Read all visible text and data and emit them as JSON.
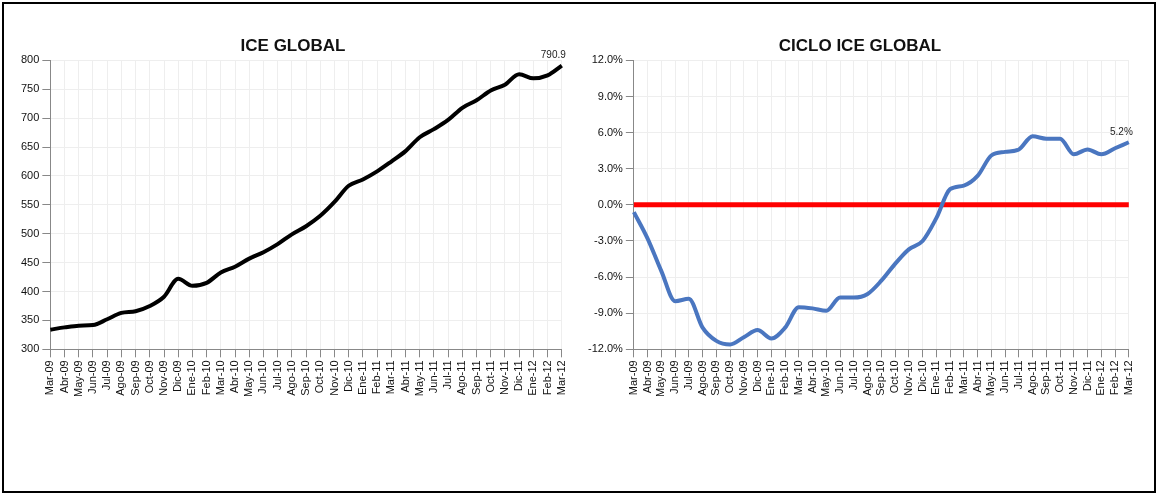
{
  "chart_data": [
    {
      "type": "line",
      "title": "ICE GLOBAL",
      "categories": [
        "Mar-09",
        "Abr-09",
        "May-09",
        "Jun-09",
        "Jul-09",
        "Ago-09",
        "Sep-09",
        "Oct-09",
        "Nov-09",
        "Dic-09",
        "Ene-10",
        "Feb-10",
        "Mar-10",
        "Abr-10",
        "May-10",
        "Jun-10",
        "Jul-10",
        "Ago-10",
        "Sep-10",
        "Oct-10",
        "Nov-10",
        "Dic-10",
        "Ene-11",
        "Feb-11",
        "Mar-11",
        "Abr-11",
        "May-11",
        "Jun-11",
        "Jul-11",
        "Ago-11",
        "Sep-11",
        "Oct-11",
        "Nov-11",
        "Dic-11",
        "Ene-12",
        "Feb-12",
        "Mar-12"
      ],
      "series": [
        {
          "color": "#000000",
          "values": [
            334,
            338,
            341,
            342,
            352,
            363,
            366,
            375,
            391,
            422,
            410,
            415,
            433,
            443,
            457,
            468,
            482,
            499,
            513,
            531,
            555,
            583,
            594,
            608,
            625,
            643,
            667,
            681,
            697,
            718,
            731,
            748,
            758,
            776,
            769,
            774,
            790.9
          ],
          "value_labels": [
            null,
            null,
            null,
            null,
            null,
            null,
            null,
            null,
            null,
            null,
            null,
            null,
            null,
            null,
            null,
            null,
            null,
            null,
            null,
            null,
            null,
            null,
            null,
            null,
            null,
            null,
            null,
            null,
            null,
            null,
            null,
            null,
            null,
            null,
            null,
            null,
            "790.9"
          ]
        }
      ],
      "ylim": [
        300,
        800
      ],
      "yticks": [
        300,
        350,
        400,
        450,
        500,
        550,
        600,
        650,
        700,
        750,
        800
      ],
      "grid": true
    },
    {
      "type": "line",
      "title": "CICLO ICE GLOBAL",
      "categories": [
        "Mar-09",
        "Abr-09",
        "May-09",
        "Jun-09",
        "Jul-09",
        "Ago-09",
        "Sep-09",
        "Oct-09",
        "Nov-09",
        "Dic-09",
        "Ene-10",
        "Feb-10",
        "Mar-10",
        "Abr-10",
        "May-10",
        "Jun-10",
        "Jul-10",
        "Ago-10",
        "Sep-10",
        "Oct-10",
        "Nov-10",
        "Dic-10",
        "Ene-11",
        "Feb-11",
        "Mar-11",
        "Abr-11",
        "May-11",
        "Jun-11",
        "Jul-11",
        "Ago-11",
        "Sep-11",
        "Oct-11",
        "Nov-11",
        "Dic-11",
        "Ene-12",
        "Feb-12",
        "Mar-12"
      ],
      "series": [
        {
          "color": "#4a76c0",
          "values": [
            -0.6,
            -2.8,
            -5.5,
            -8.0,
            -7.8,
            -10.2,
            -11.3,
            -11.6,
            -11.0,
            -10.4,
            -11.1,
            -10.2,
            -8.5,
            -8.6,
            -8.8,
            -7.7,
            -7.7,
            -7.4,
            -6.3,
            -4.9,
            -3.7,
            -3.0,
            -1.1,
            1.3,
            1.6,
            2.4,
            4.1,
            4.4,
            4.6,
            5.7,
            5.5,
            5.5,
            4.2,
            4.6,
            4.2,
            4.7,
            5.2
          ],
          "value_labels": [
            null,
            null,
            null,
            null,
            null,
            null,
            null,
            null,
            null,
            null,
            null,
            null,
            null,
            null,
            null,
            null,
            null,
            null,
            null,
            null,
            null,
            null,
            null,
            null,
            null,
            null,
            null,
            null,
            null,
            null,
            null,
            null,
            null,
            null,
            null,
            null,
            "5.2%"
          ]
        }
      ],
      "ylim": [
        -12,
        12
      ],
      "yticks": [
        {
          "value": -12,
          "label": "-12.0%"
        },
        {
          "value": -9,
          "label": "-9.0%"
        },
        {
          "value": -6,
          "label": "-6.0%"
        },
        {
          "value": -3,
          "label": "-3.0%"
        },
        {
          "value": 0,
          "label": "0.0%"
        },
        {
          "value": 3,
          "label": "3.0%"
        },
        {
          "value": 6,
          "label": "6.0%"
        },
        {
          "value": 9,
          "label": "9.0%"
        },
        {
          "value": 12,
          "label": "12.0%"
        }
      ],
      "grid": true,
      "ref_lines": [
        {
          "axis": "y",
          "value": 0,
          "color": "#ff0000"
        }
      ]
    }
  ]
}
